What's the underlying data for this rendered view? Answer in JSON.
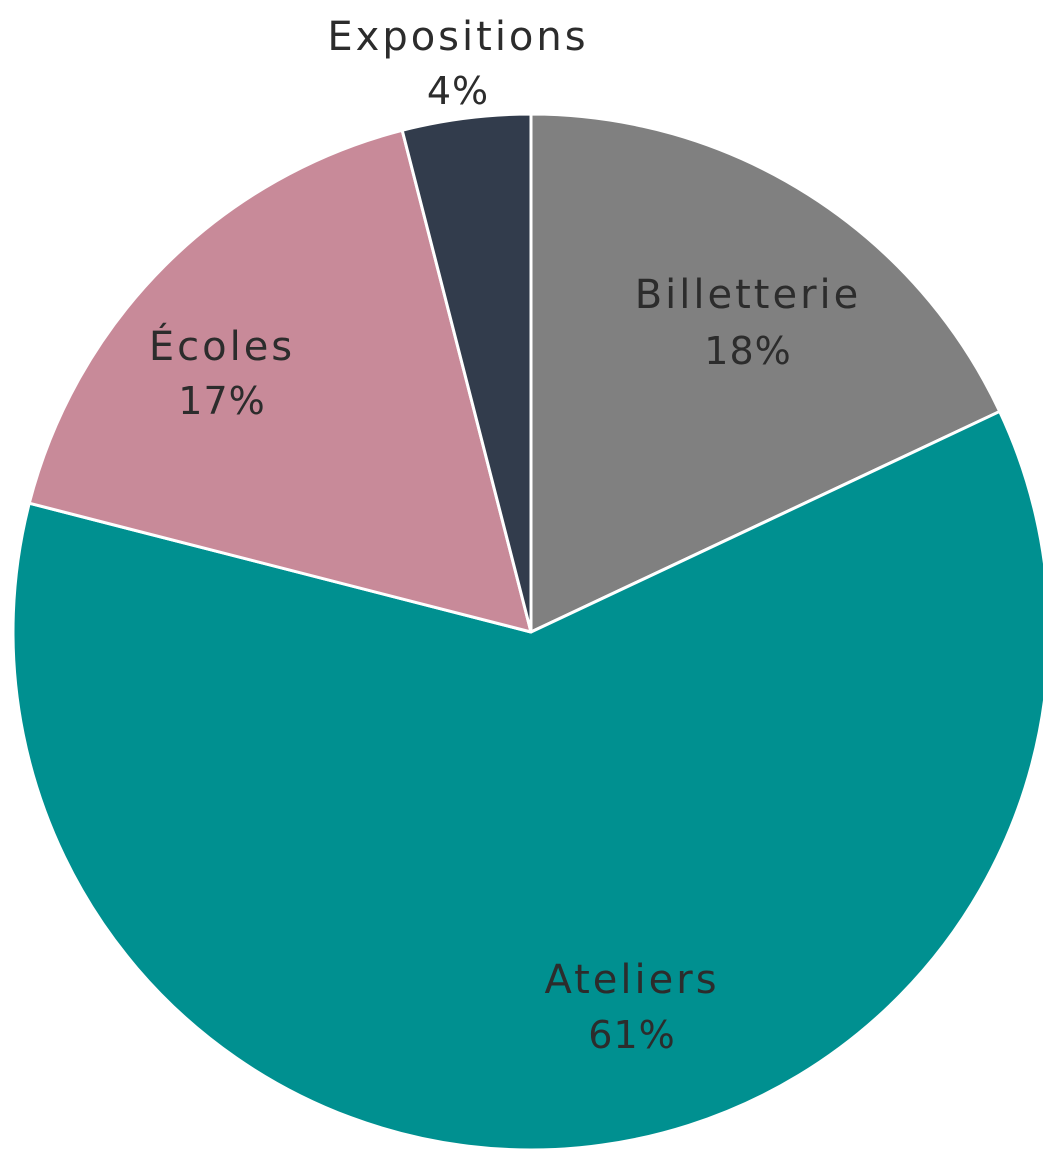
{
  "chart_data": {
    "type": "pie",
    "title": "",
    "start_angle_deg": 0,
    "direction": "clockwise",
    "slices": [
      {
        "label": "Billetterie",
        "value": 18,
        "value_label": "18%",
        "color": "#808080"
      },
      {
        "label": "Ateliers",
        "value": 61,
        "value_label": "61%",
        "color": "#009090"
      },
      {
        "label": "Écoles",
        "value": 17,
        "value_label": "17%",
        "color": "#c88a99"
      },
      {
        "label": "Expositions",
        "value": 4,
        "value_label": "4%",
        "color": "#323c4c"
      }
    ],
    "slice_border_color": "#ffffff",
    "legend": "none",
    "data_labels": "category name and percentage on each slice"
  }
}
